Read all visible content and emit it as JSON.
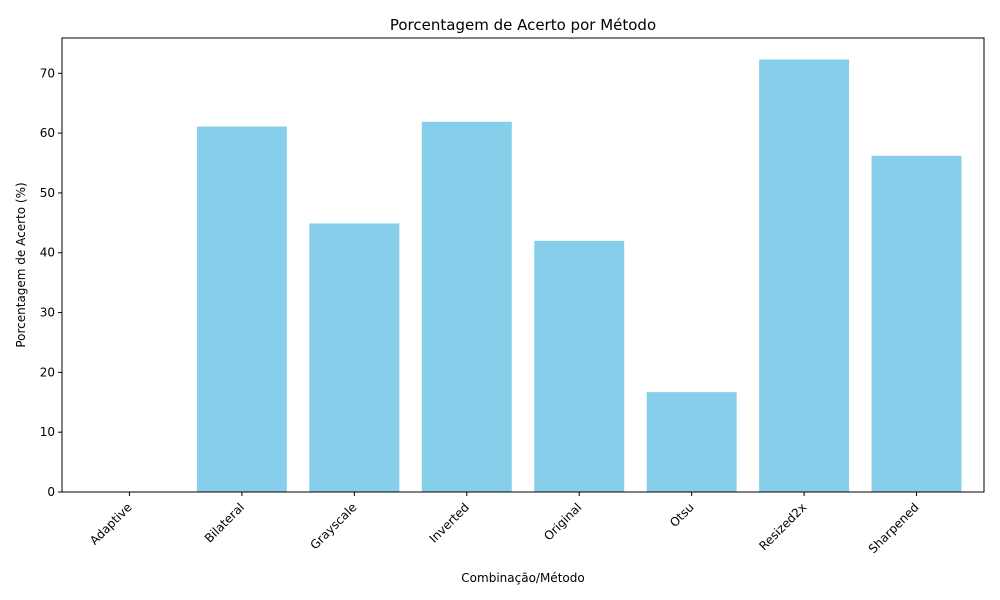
{
  "chart_data": {
    "type": "bar",
    "title": "Porcentagem de Acerto por Método",
    "xlabel": "Combinação/Método",
    "ylabel": "Porcentagem de Acerto (%)",
    "categories": [
      "Adaptive",
      "Bilateral",
      "Grayscale",
      "Inverted",
      "Original",
      "Otsu",
      "Resized2x",
      "Sharpened"
    ],
    "values": [
      0,
      61.1,
      44.9,
      61.9,
      42.0,
      16.7,
      72.3,
      56.2
    ],
    "ylim": [
      0,
      75.9
    ],
    "yticks": [
      0,
      10,
      20,
      30,
      40,
      50,
      60,
      70
    ],
    "bar_color": "#87CEEB",
    "grid": false,
    "xtick_rotation_deg": 45
  }
}
